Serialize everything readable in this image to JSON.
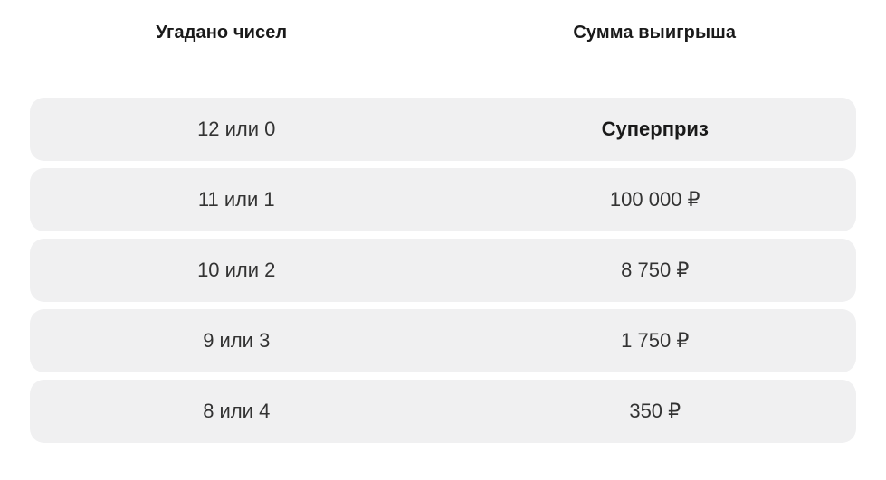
{
  "table": {
    "headers": {
      "guessed": "Угадано чисел",
      "prize": "Сумма выигрыша"
    },
    "rows": [
      {
        "guessed": "12 или 0",
        "prize": "Суперприз"
      },
      {
        "guessed": "11 или 1",
        "prize": "100 000 ₽"
      },
      {
        "guessed": "10 или 2",
        "prize": "8 750 ₽"
      },
      {
        "guessed": "9 или 3",
        "prize": "1 750 ₽"
      },
      {
        "guessed": "8 или 4",
        "prize": "350 ₽"
      }
    ],
    "colors": {
      "row_background": "#f0f0f1",
      "header_text": "#1a1a1a",
      "cell_text": "#333333",
      "page_background": "#ffffff"
    }
  }
}
